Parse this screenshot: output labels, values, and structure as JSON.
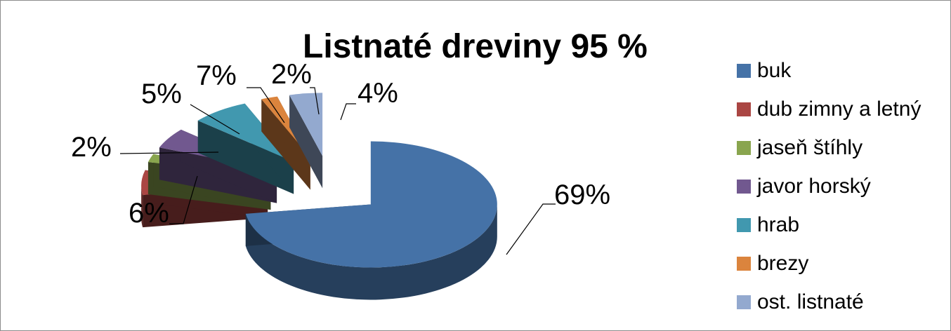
{
  "chart_data": {
    "type": "pie",
    "title": "Listnaté dreviny 95 %",
    "categories": [
      "buk",
      "dub zimny a letný",
      "jaseň štíhly",
      "javor horský",
      "hrab",
      "brezy",
      "ost. listnaté"
    ],
    "values": [
      69,
      6,
      2,
      5,
      7,
      2,
      4
    ],
    "data_labels": [
      "69%",
      "6%",
      "2%",
      "5%",
      "7%",
      "2%",
      "4%"
    ],
    "colors": [
      "#4572a7",
      "#aa4643",
      "#89a54e",
      "#71588f",
      "#4198af",
      "#db843d",
      "#93a9cf"
    ],
    "exploded": true,
    "three_d": true,
    "legend_position": "right"
  }
}
